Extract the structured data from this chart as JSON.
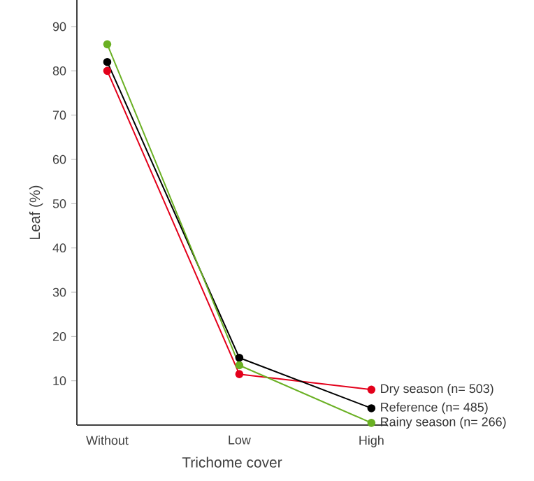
{
  "chart_data": {
    "type": "line",
    "xlabel": "Trichome cover",
    "ylabel": "Leaf (%)",
    "categories": [
      "Without",
      "Low",
      "High"
    ],
    "ylim": [
      0,
      96
    ],
    "yticks": [
      10,
      20,
      30,
      40,
      50,
      60,
      70,
      80,
      90
    ],
    "grid": false,
    "marker": "circle",
    "line_style": "solid",
    "series": [
      {
        "name": "Dry season (n= 503)",
        "color": "#e3001b",
        "values": [
          80,
          11.5,
          8
        ]
      },
      {
        "name": "Reference (n= 485)",
        "color": "#000000",
        "values": [
          82,
          15.2,
          3.8
        ]
      },
      {
        "name": "Rainy season (n= 266)",
        "color": "#6ab023",
        "values": [
          86,
          13.5,
          0.5
        ]
      }
    ]
  }
}
